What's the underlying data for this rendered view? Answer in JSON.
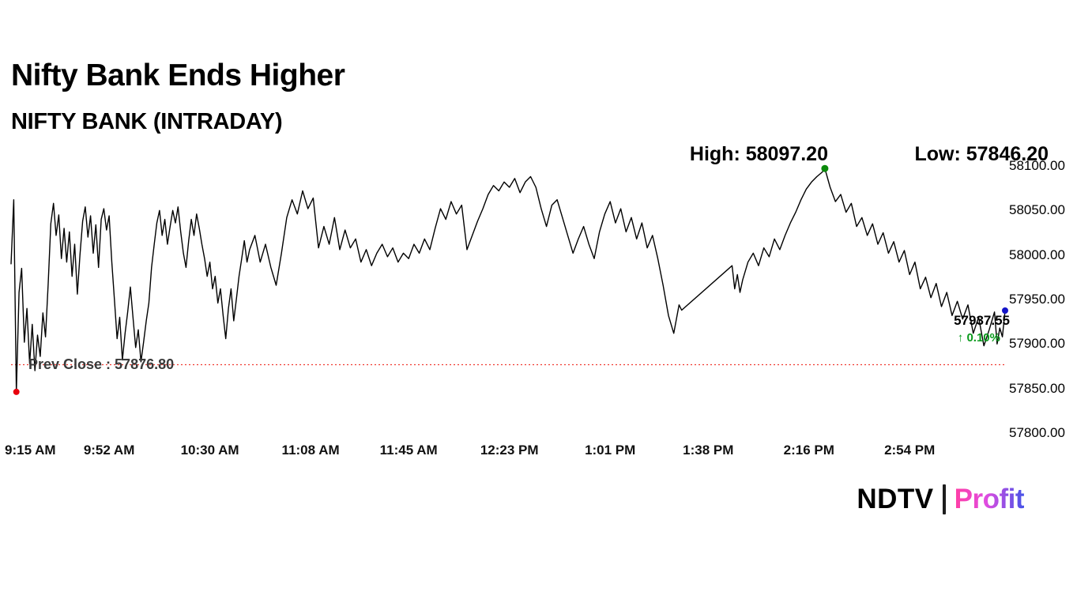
{
  "header": {
    "title": "Nifty Bank Ends Higher",
    "subtitle": "NIFTY BANK (INTRADAY)"
  },
  "annotations": {
    "high_label": "High: 58097.20",
    "low_label": "Low: 57846.20",
    "prev_close_label": "Prev Close : 57876.80",
    "last_price": "57937.55",
    "up_arrow": "↑",
    "change_pct": "0.10%"
  },
  "branding": {
    "ndtv": "NDTV",
    "profit": "Profit"
  },
  "colors": {
    "line": "#000000",
    "prev_close_line": "#f03a30",
    "high_marker": "#0a8a0a",
    "low_marker": "#e8000d",
    "last_marker": "#1414c8",
    "change_green": "#0a9b1d"
  },
  "chart_data": {
    "type": "line",
    "title": "NIFTY BANK (INTRADAY)",
    "x_unit": "minutes since 9:15 AM",
    "x_range": [
      0,
      375
    ],
    "ylim": [
      57800,
      58100
    ],
    "grid": false,
    "legend": "none",
    "prev_close": 57876.8,
    "y_ticks": [
      {
        "value": 58100,
        "label": "58100.00"
      },
      {
        "value": 58050,
        "label": "58050.00"
      },
      {
        "value": 58000,
        "label": "58000.00"
      },
      {
        "value": 57950,
        "label": "57950.00"
      },
      {
        "value": 57900,
        "label": "57900.00"
      },
      {
        "value": 57850,
        "label": "57850.00"
      },
      {
        "value": 57800,
        "label": "57800.00"
      }
    ],
    "x_ticks": [
      {
        "t": 0,
        "label": "9:15 AM"
      },
      {
        "t": 37,
        "label": "9:52 AM"
      },
      {
        "t": 75,
        "label": "10:30 AM"
      },
      {
        "t": 113,
        "label": "11:08 AM"
      },
      {
        "t": 150,
        "label": "11:45 AM"
      },
      {
        "t": 188,
        "label": "12:23 PM"
      },
      {
        "t": 226,
        "label": "1:01 PM"
      },
      {
        "t": 263,
        "label": "1:38 PM"
      },
      {
        "t": 301,
        "label": "2:16 PM"
      },
      {
        "t": 339,
        "label": "2:54 PM"
      }
    ],
    "markers": {
      "low": {
        "t": 2,
        "value": 57846.2,
        "color": "#e8000d"
      },
      "high": {
        "t": 307,
        "value": 58097.2,
        "color": "#0a8a0a"
      },
      "last": {
        "t": 375,
        "value": 57937.55,
        "color": "#1414c8"
      }
    },
    "series": [
      {
        "name": "NIFTY BANK",
        "color": "#000000",
        "points": [
          [
            0,
            57990
          ],
          [
            1,
            58062
          ],
          [
            2,
            57846.2
          ],
          [
            3,
            57958
          ],
          [
            4,
            57985
          ],
          [
            5,
            57902
          ],
          [
            6,
            57940
          ],
          [
            7,
            57878
          ],
          [
            8,
            57922
          ],
          [
            9,
            57870
          ],
          [
            10,
            57910
          ],
          [
            11,
            57886
          ],
          [
            12,
            57935
          ],
          [
            13,
            57908
          ],
          [
            14,
            57968
          ],
          [
            15,
            58035
          ],
          [
            16,
            58058
          ],
          [
            17,
            58022
          ],
          [
            18,
            58045
          ],
          [
            19,
            57996
          ],
          [
            20,
            58030
          ],
          [
            21,
            57992
          ],
          [
            22,
            58026
          ],
          [
            23,
            57976
          ],
          [
            24,
            58012
          ],
          [
            25,
            57956
          ],
          [
            26,
            58000
          ],
          [
            27,
            58038
          ],
          [
            28,
            58054
          ],
          [
            29,
            58020
          ],
          [
            30,
            58044
          ],
          [
            31,
            58002
          ],
          [
            32,
            58034
          ],
          [
            33,
            57986
          ],
          [
            34,
            58040
          ],
          [
            35,
            58052
          ],
          [
            36,
            58028
          ],
          [
            37,
            58044
          ],
          [
            38,
            57992
          ],
          [
            39,
            57950
          ],
          [
            40,
            57906
          ],
          [
            41,
            57930
          ],
          [
            42,
            57882
          ],
          [
            43,
            57912
          ],
          [
            44,
            57936
          ],
          [
            45,
            57964
          ],
          [
            46,
            57930
          ],
          [
            47,
            57896
          ],
          [
            48,
            57916
          ],
          [
            49,
            57880
          ],
          [
            50,
            57902
          ],
          [
            51,
            57926
          ],
          [
            52,
            57946
          ],
          [
            53,
            57986
          ],
          [
            54,
            58012
          ],
          [
            55,
            58036
          ],
          [
            56,
            58050
          ],
          [
            57,
            58022
          ],
          [
            58,
            58040
          ],
          [
            59,
            58012
          ],
          [
            60,
            58032
          ],
          [
            61,
            58050
          ],
          [
            62,
            58036
          ],
          [
            63,
            58054
          ],
          [
            64,
            58026
          ],
          [
            65,
            58002
          ],
          [
            66,
            57986
          ],
          [
            67,
            58016
          ],
          [
            68,
            58040
          ],
          [
            69,
            58022
          ],
          [
            70,
            58046
          ],
          [
            71,
            58030
          ],
          [
            72,
            58012
          ],
          [
            73,
            57996
          ],
          [
            74,
            57976
          ],
          [
            75,
            57992
          ],
          [
            76,
            57962
          ],
          [
            77,
            57976
          ],
          [
            78,
            57946
          ],
          [
            79,
            57962
          ],
          [
            80,
            57932
          ],
          [
            81,
            57906
          ],
          [
            82,
            57940
          ],
          [
            83,
            57962
          ],
          [
            84,
            57926
          ],
          [
            85,
            57950
          ],
          [
            86,
            57976
          ],
          [
            87,
            57996
          ],
          [
            88,
            58016
          ],
          [
            89,
            57992
          ],
          [
            90,
            58006
          ],
          [
            92,
            58022
          ],
          [
            94,
            57992
          ],
          [
            96,
            58012
          ],
          [
            98,
            57986
          ],
          [
            100,
            57966
          ],
          [
            102,
            58002
          ],
          [
            104,
            58042
          ],
          [
            106,
            58062
          ],
          [
            108,
            58046
          ],
          [
            110,
            58072
          ],
          [
            112,
            58052
          ],
          [
            114,
            58064
          ],
          [
            116,
            58008
          ],
          [
            118,
            58032
          ],
          [
            120,
            58012
          ],
          [
            122,
            58042
          ],
          [
            124,
            58006
          ],
          [
            126,
            58028
          ],
          [
            128,
            58008
          ],
          [
            130,
            58018
          ],
          [
            132,
            57992
          ],
          [
            134,
            58006
          ],
          [
            136,
            57988
          ],
          [
            138,
            58002
          ],
          [
            140,
            58012
          ],
          [
            142,
            57998
          ],
          [
            144,
            58008
          ],
          [
            146,
            57992
          ],
          [
            148,
            58002
          ],
          [
            150,
            57996
          ],
          [
            152,
            58012
          ],
          [
            154,
            58002
          ],
          [
            156,
            58018
          ],
          [
            158,
            58006
          ],
          [
            160,
            58030
          ],
          [
            162,
            58052
          ],
          [
            164,
            58040
          ],
          [
            166,
            58060
          ],
          [
            168,
            58046
          ],
          [
            170,
            58056
          ],
          [
            172,
            58006
          ],
          [
            174,
            58022
          ],
          [
            176,
            58038
          ],
          [
            178,
            58052
          ],
          [
            180,
            58068
          ],
          [
            182,
            58078
          ],
          [
            184,
            58072
          ],
          [
            186,
            58082
          ],
          [
            188,
            58076
          ],
          [
            190,
            58086
          ],
          [
            192,
            58070
          ],
          [
            194,
            58082
          ],
          [
            196,
            58088
          ],
          [
            198,
            58076
          ],
          [
            200,
            58052
          ],
          [
            202,
            58032
          ],
          [
            204,
            58056
          ],
          [
            206,
            58062
          ],
          [
            208,
            58042
          ],
          [
            210,
            58022
          ],
          [
            212,
            58002
          ],
          [
            214,
            58018
          ],
          [
            216,
            58032
          ],
          [
            218,
            58012
          ],
          [
            220,
            57996
          ],
          [
            222,
            58026
          ],
          [
            224,
            58046
          ],
          [
            226,
            58060
          ],
          [
            228,
            58036
          ],
          [
            230,
            58052
          ],
          [
            232,
            58026
          ],
          [
            234,
            58042
          ],
          [
            236,
            58018
          ],
          [
            238,
            58036
          ],
          [
            240,
            58008
          ],
          [
            242,
            58022
          ],
          [
            244,
            57996
          ],
          [
            246,
            57966
          ],
          [
            248,
            57932
          ],
          [
            250,
            57912
          ],
          [
            252,
            57944
          ],
          [
            253,
            57938
          ],
          [
            272,
            57988
          ],
          [
            273,
            57962
          ],
          [
            274,
            57978
          ],
          [
            275,
            57958
          ],
          [
            276,
            57972
          ],
          [
            278,
            57992
          ],
          [
            280,
            58002
          ],
          [
            282,
            57988
          ],
          [
            284,
            58008
          ],
          [
            286,
            57998
          ],
          [
            288,
            58018
          ],
          [
            290,
            58006
          ],
          [
            292,
            58022
          ],
          [
            294,
            58036
          ],
          [
            296,
            58048
          ],
          [
            298,
            58062
          ],
          [
            300,
            58074
          ],
          [
            302,
            58082
          ],
          [
            304,
            58088
          ],
          [
            306,
            58093
          ],
          [
            307,
            58097.2
          ],
          [
            309,
            58076
          ],
          [
            311,
            58060
          ],
          [
            313,
            58068
          ],
          [
            315,
            58048
          ],
          [
            317,
            58058
          ],
          [
            319,
            58032
          ],
          [
            321,
            58042
          ],
          [
            323,
            58022
          ],
          [
            325,
            58035
          ],
          [
            327,
            58012
          ],
          [
            329,
            58025
          ],
          [
            331,
            58002
          ],
          [
            333,
            58015
          ],
          [
            335,
            57992
          ],
          [
            337,
            58005
          ],
          [
            339,
            57978
          ],
          [
            341,
            57992
          ],
          [
            343,
            57962
          ],
          [
            345,
            57975
          ],
          [
            347,
            57952
          ],
          [
            349,
            57968
          ],
          [
            351,
            57942
          ],
          [
            353,
            57958
          ],
          [
            355,
            57932
          ],
          [
            357,
            57948
          ],
          [
            359,
            57928
          ],
          [
            361,
            57944
          ],
          [
            363,
            57912
          ],
          [
            365,
            57930
          ],
          [
            367,
            57898
          ],
          [
            369,
            57916
          ],
          [
            371,
            57936
          ],
          [
            372,
            57900
          ],
          [
            373,
            57918
          ],
          [
            374,
            57908
          ],
          [
            375,
            57937.55
          ]
        ]
      }
    ]
  }
}
